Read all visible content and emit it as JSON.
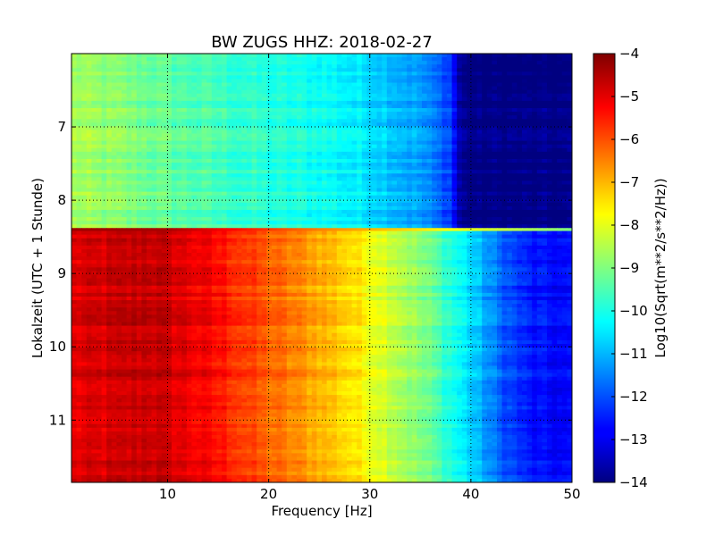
{
  "chart_data": {
    "type": "heatmap",
    "title": "BW ZUGS HHZ: 2018-02-27",
    "xlabel": "Frequency [Hz]",
    "ylabel": "Lokalzeit (UTC + 1 Stunde)",
    "xlim": [
      0.5,
      50
    ],
    "ylim": [
      6,
      11.85
    ],
    "y_inverted": true,
    "x_ticks": [
      10,
      20,
      30,
      40,
      50
    ],
    "x_tick_labels": [
      "10",
      "20",
      "30",
      "40",
      "50"
    ],
    "y_ticks": [
      7,
      8,
      9,
      10,
      11
    ],
    "y_tick_labels": [
      "7",
      "8",
      "9",
      "10",
      "11"
    ],
    "grid": true,
    "colormap": "jet",
    "colorbar": {
      "label": "Log10(Sqrt(m**2/s**2/Hz))",
      "range": [
        -14,
        -4
      ],
      "ticks": [
        -4,
        -5,
        -6,
        -7,
        -8,
        -9,
        -10,
        -11,
        -12,
        -13,
        -14
      ],
      "tick_labels": [
        "−4",
        "−5",
        "−6",
        "−7",
        "−8",
        "−9",
        "−10",
        "−11",
        "−12",
        "−13",
        "−14"
      ]
    },
    "time_segments": [
      {
        "time_range": [
          6.0,
          8.38
        ],
        "frequency_hz": [
          0,
          5,
          10,
          15,
          20,
          25,
          30,
          35,
          38,
          39,
          40,
          50
        ],
        "log10_amplitude": [
          -8.6,
          -8.9,
          -9.3,
          -9.6,
          -9.9,
          -10.1,
          -10.5,
          -11.2,
          -12.1,
          -13.8,
          -14,
          -14
        ]
      },
      {
        "time_range": [
          8.38,
          8.42
        ],
        "frequency_hz": [
          0,
          10,
          25,
          45,
          50
        ],
        "log10_amplitude": [
          -4.3,
          -4.4,
          -6.5,
          -8.5,
          -9
        ]
      },
      {
        "time_range": [
          8.42,
          11.85
        ],
        "frequency_hz": [
          0,
          5,
          8,
          12,
          16,
          20,
          25,
          28,
          32,
          36,
          40,
          43,
          46,
          50
        ],
        "log10_amplitude": [
          -5.0,
          -4.8,
          -4.6,
          -5.0,
          -5.5,
          -6.2,
          -6.9,
          -7.4,
          -8.2,
          -9.2,
          -10.6,
          -11.8,
          -12.6,
          -12.8
        ]
      }
    ]
  }
}
